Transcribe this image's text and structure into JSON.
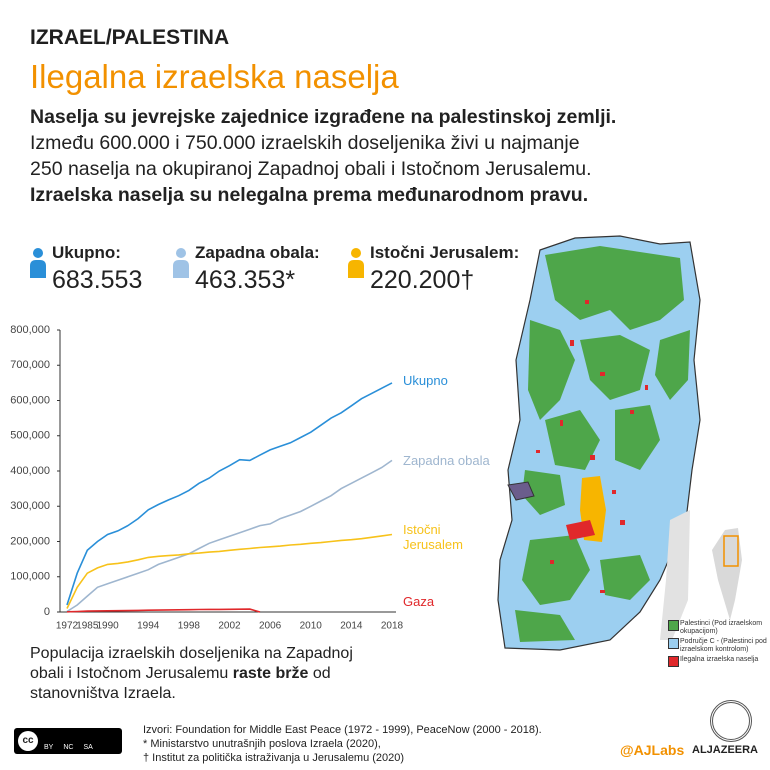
{
  "header": {
    "kicker": "IZRAEL/PALESTINA",
    "title": "Ilegalna izraelska naselja"
  },
  "intro": {
    "lead": "Naselja su jevrejske zajednice izgrađene na palestinskoj zemlji.",
    "body": [
      "Između 600.000 i 750.000 izraelskih doseljenika živi u najmanje",
      "250 naselja na okupiranoj Zapadnoj obali i Istočnom Jerusalemu."
    ],
    "closing": "Izraelska naselja su nelegalna prema međunarodnom pravu."
  },
  "stats": [
    {
      "label": "Ukupno:",
      "value": "683.553",
      "color": "#2a8fd8"
    },
    {
      "label": "Zapadna obala:",
      "value": "463.353*",
      "color": "#9fc3e6"
    },
    {
      "label": "Istočni Jerusalem:",
      "value": "220.200†",
      "color": "#f7b500"
    }
  ],
  "chart_data": {
    "type": "line",
    "categories": [
      "1972",
      null,
      "1985",
      null,
      "1990",
      null,
      null,
      null,
      "1994",
      null,
      null,
      null,
      "1998",
      null,
      null,
      null,
      "2002",
      null,
      null,
      null,
      "2006",
      null,
      null,
      null,
      "2010",
      null,
      null,
      null,
      "2014",
      null,
      null,
      null,
      "2018"
    ],
    "series": [
      {
        "name": "Ukupno",
        "color": "#2a8fd8",
        "values": [
          20000,
          110000,
          175000,
          200000,
          220000,
          230000,
          245000,
          265000,
          290000,
          305000,
          318000,
          330000,
          345000,
          365000,
          380000,
          400000,
          415000,
          432000,
          430000,
          445000,
          460000,
          470000,
          480000,
          495000,
          510000,
          530000,
          550000,
          565000,
          585000,
          605000,
          620000,
          635000,
          650000
        ]
      },
      {
        "name": "Zapadna obala",
        "color": "#9fb6cf",
        "values": [
          1500,
          20000,
          45000,
          70000,
          80000,
          90000,
          100000,
          110000,
          120000,
          135000,
          145000,
          155000,
          165000,
          180000,
          195000,
          205000,
          215000,
          225000,
          235000,
          245000,
          250000,
          265000,
          275000,
          285000,
          300000,
          315000,
          330000,
          350000,
          365000,
          380000,
          395000,
          410000,
          430000
        ]
      },
      {
        "name": "Istočni Jerusalem",
        "color": "#f7c21a",
        "values": [
          10000,
          70000,
          110000,
          125000,
          135000,
          138000,
          142000,
          148000,
          155000,
          158000,
          160000,
          162000,
          165000,
          167000,
          170000,
          172000,
          175000,
          178000,
          180000,
          183000,
          185000,
          187000,
          190000,
          192000,
          195000,
          197000,
          200000,
          203000,
          205000,
          208000,
          212000,
          216000,
          220000
        ]
      },
      {
        "name": "Gaza",
        "color": "#e0282b",
        "values": [
          700,
          1500,
          2500,
          3000,
          3500,
          3800,
          4000,
          4500,
          5000,
          5500,
          6000,
          6300,
          6600,
          7000,
          7300,
          7500,
          7700,
          8000,
          8200,
          0,
          null,
          null,
          null,
          null,
          null,
          null,
          null,
          null,
          null,
          null,
          null,
          null,
          null
        ]
      }
    ],
    "ylim": [
      0,
      800000
    ],
    "yticks": [
      0,
      {
        "value": 100000,
        "label": "100,000"
      },
      {
        "value": 200000,
        "label": "200,000"
      },
      {
        "value": 300000,
        "label": "300,000"
      },
      {
        "value": 400000,
        "label": "400,000"
      },
      {
        "value": 500000,
        "label": "500,000"
      },
      {
        "value": 600000,
        "label": "600,000"
      },
      {
        "value": 700000,
        "label": "700,000"
      },
      {
        "value": 800000,
        "label": "800,000"
      }
    ]
  },
  "note": {
    "text": "Populacija izraelskih doseljenika na Zapadnoj obali i Istočnom Jerusalemu",
    "emphasis": "raste brže",
    "rest": "od stanovništva Izraela."
  },
  "map_legend": [
    {
      "label": "Palestinci (Pod izraelskom okupacijom)",
      "color": "#4ea64a"
    },
    {
      "label": "Područje C - (Palestinci pod izraelskom kontrolom)",
      "color": "#9ccff0"
    },
    {
      "label": "Ilegalna izraelska naselja",
      "color": "#e0282b"
    }
  ],
  "sources": [
    "Izvori: Foundation for Middle East Peace (1972 - 1999), PeaceNow (2000 - 2018).",
    "* Ministarstvo unutrašnjih poslova Izraela (2020),",
    "† Institut za politička istraživanja u Jerusalemu (2020)"
  ],
  "license": [
    "BY",
    "NC",
    "SA"
  ],
  "credit": "@AJLabs",
  "brand": "ALJAZEERA"
}
